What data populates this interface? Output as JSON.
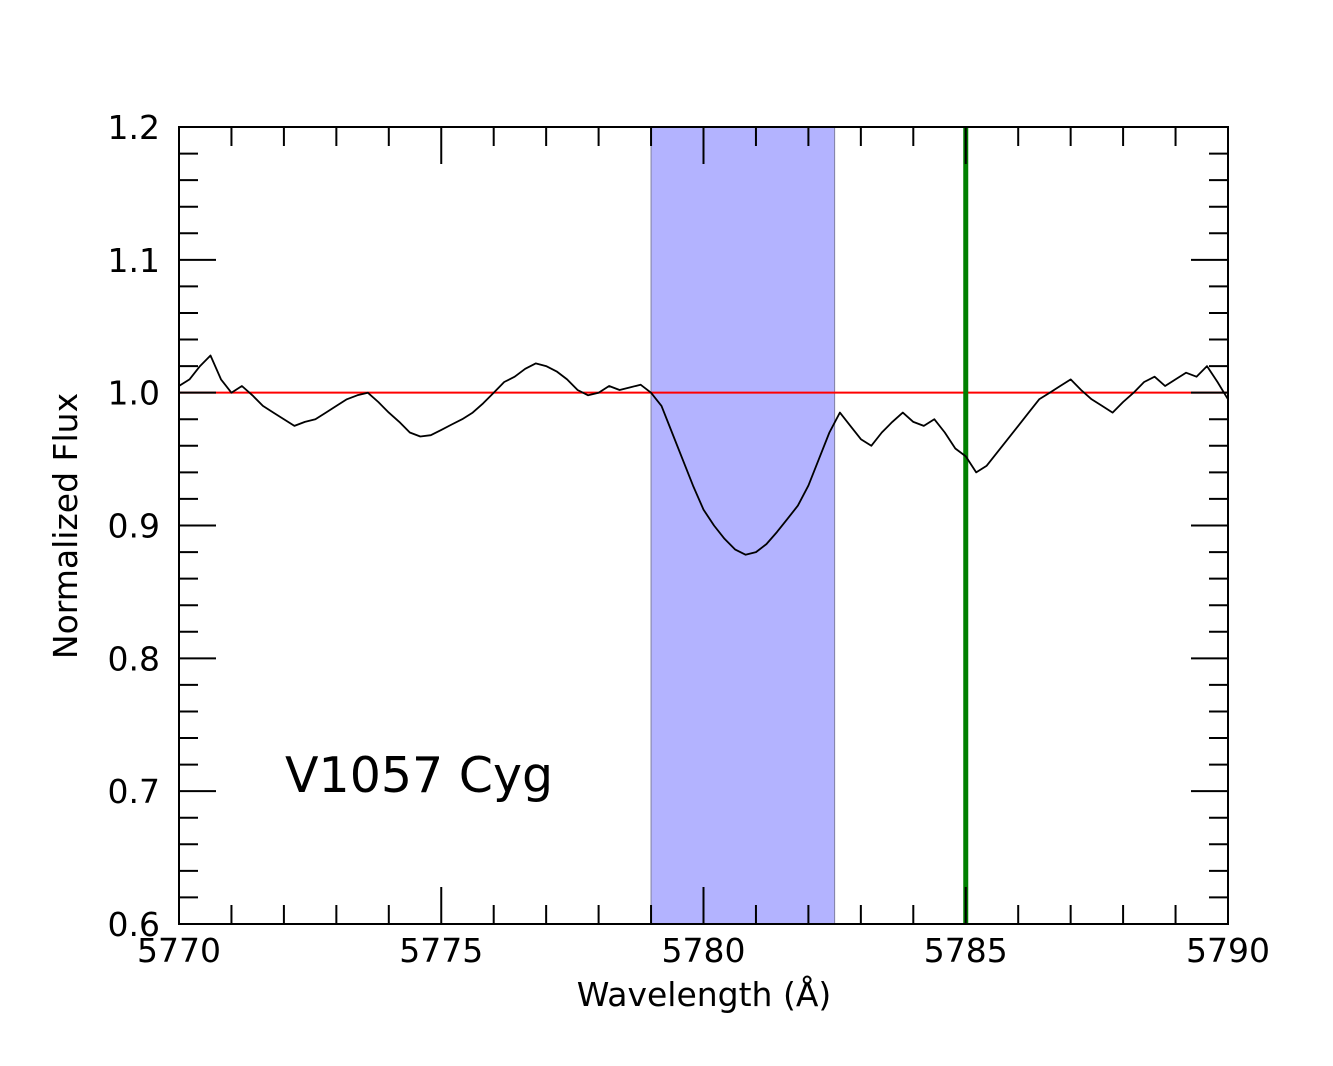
{
  "chart_data": {
    "type": "line",
    "title": "",
    "xlabel": "Wavelength (Å)",
    "ylabel": "Normalized Flux",
    "xlim": [
      5770,
      5790
    ],
    "ylim": [
      0.6,
      1.2
    ],
    "x_ticks": [
      "5770",
      "5775",
      "5780",
      "5785",
      "5790"
    ],
    "y_ticks": [
      "0.6",
      "0.7",
      "0.8",
      "0.9",
      "1.0",
      "1.1",
      "1.2"
    ],
    "grid": false,
    "annotation": "V1057 Cyg",
    "shaded_band": {
      "x_start": 5779.0,
      "x_end": 5782.5,
      "color": "#b3b3ff"
    },
    "continuum": {
      "y": 1.0,
      "color": "#ff0000"
    },
    "vertical_line": {
      "x": 5785.0,
      "color": "#008000"
    },
    "series": [
      {
        "color": "#000000",
        "x": [
          5770.0,
          5770.2,
          5770.4,
          5770.6,
          5770.8,
          5771.0,
          5771.2,
          5771.4,
          5771.6,
          5771.8,
          5772.0,
          5772.2,
          5772.4,
          5772.6,
          5772.8,
          5773.0,
          5773.2,
          5773.4,
          5773.6,
          5773.8,
          5774.0,
          5774.2,
          5774.4,
          5774.6,
          5774.8,
          5775.0,
          5775.2,
          5775.4,
          5775.6,
          5775.8,
          5776.0,
          5776.2,
          5776.4,
          5776.6,
          5776.8,
          5777.0,
          5777.2,
          5777.4,
          5777.6,
          5777.8,
          5778.0,
          5778.2,
          5778.4,
          5778.6,
          5778.8,
          5779.0,
          5779.2,
          5779.4,
          5779.6,
          5779.8,
          5780.0,
          5780.2,
          5780.4,
          5780.6,
          5780.8,
          5781.0,
          5781.2,
          5781.4,
          5781.6,
          5781.8,
          5782.0,
          5782.2,
          5782.4,
          5782.6,
          5782.8,
          5783.0,
          5783.2,
          5783.4,
          5783.6,
          5783.8,
          5784.0,
          5784.2,
          5784.4,
          5784.6,
          5784.8,
          5785.0,
          5785.2,
          5785.4,
          5785.6,
          5785.8,
          5786.0,
          5786.2,
          5786.4,
          5786.6,
          5786.8,
          5787.0,
          5787.2,
          5787.4,
          5787.6,
          5787.8,
          5788.0,
          5788.2,
          5788.4,
          5788.6,
          5788.8,
          5789.0,
          5789.2,
          5789.4,
          5789.6,
          5789.8,
          5790.0
        ],
        "values": [
          1.005,
          1.01,
          1.02,
          1.028,
          1.01,
          1.0,
          1.005,
          0.998,
          0.99,
          0.985,
          0.98,
          0.975,
          0.978,
          0.98,
          0.985,
          0.99,
          0.995,
          0.998,
          1.0,
          0.993,
          0.985,
          0.978,
          0.97,
          0.967,
          0.968,
          0.972,
          0.976,
          0.98,
          0.985,
          0.992,
          1.0,
          1.008,
          1.012,
          1.018,
          1.022,
          1.02,
          1.016,
          1.01,
          1.002,
          0.998,
          1.0,
          1.005,
          1.002,
          1.004,
          1.006,
          1.0,
          0.99,
          0.97,
          0.95,
          0.93,
          0.912,
          0.9,
          0.89,
          0.882,
          0.878,
          0.88,
          0.886,
          0.895,
          0.905,
          0.915,
          0.93,
          0.95,
          0.97,
          0.985,
          0.975,
          0.965,
          0.96,
          0.97,
          0.978,
          0.985,
          0.978,
          0.975,
          0.98,
          0.97,
          0.958,
          0.952,
          0.94,
          0.945,
          0.955,
          0.965,
          0.975,
          0.985,
          0.995,
          1.0,
          1.005,
          1.01,
          1.002,
          0.995,
          0.99,
          0.985,
          0.993,
          1.0,
          1.008,
          1.012,
          1.005,
          1.01,
          1.015,
          1.012,
          1.02,
          1.008,
          0.995
        ]
      }
    ]
  }
}
